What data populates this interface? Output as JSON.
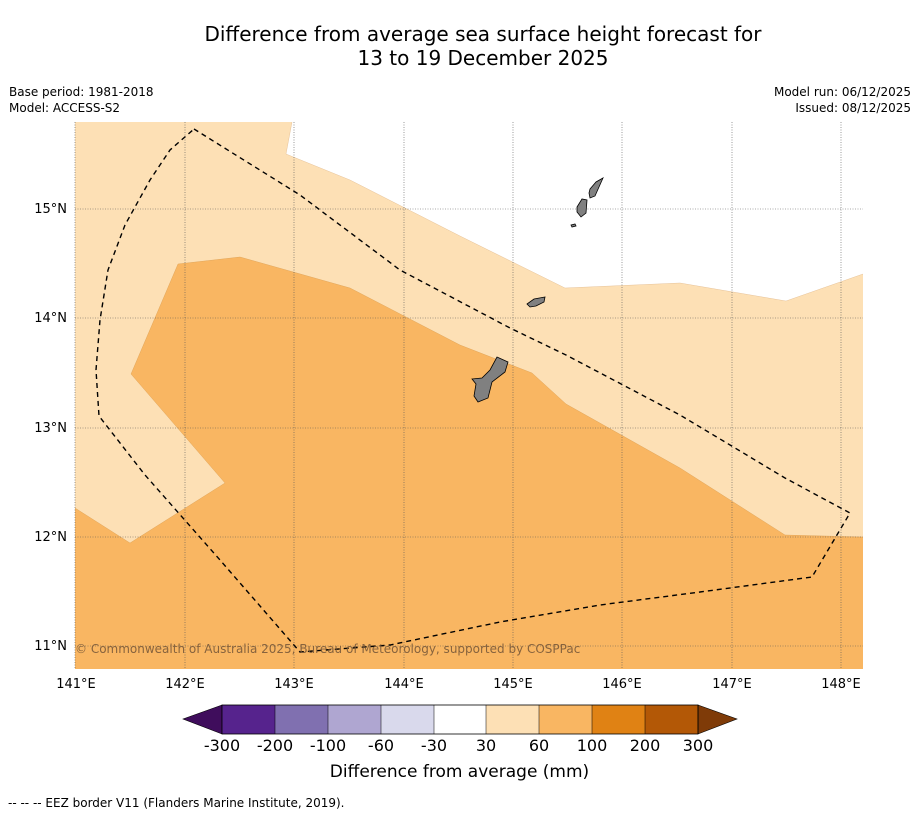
{
  "title_line1": "Difference from average sea surface height forecast for",
  "title_line2": "13 to 19 December 2025",
  "base_period": "Base period: 1981-2018",
  "model": "Model: ACCESS-S2",
  "model_run": "Model run: 06/12/2025",
  "issued": "Issued: 08/12/2025",
  "copyright": "© Commonwealth of Australia 2025, Bureau of Meteorology, supported by COSPPac",
  "lat_labels": [
    "15°N",
    "14°N",
    "13°N",
    "12°N",
    "11°N"
  ],
  "lon_labels": [
    "141°E",
    "142°E",
    "143°E",
    "144°E",
    "145°E",
    "146°E",
    "147°E",
    "148°E"
  ],
  "colorbar": {
    "tick_labels": [
      "-300",
      "-200",
      "-100",
      "-60",
      "-30",
      "30",
      "60",
      "100",
      "200",
      "300"
    ],
    "colors": [
      "#3f0d5c",
      "#56238d",
      "#8070b0",
      "#afa6d1",
      "#d9d9ec",
      "#ffffff",
      "#fde0b5",
      "#f9b662",
      "#e08214",
      "#b35806",
      "#7f3b08"
    ],
    "label": "Difference from average (mm)"
  },
  "map_colors": {
    "band_30_60": "#fde0b5",
    "band_60_100": "#f9b662",
    "land": "#808080"
  },
  "legend_footnote": "-- -- -- EEZ border V11 (Flanders Marine Institute, 2019)."
}
